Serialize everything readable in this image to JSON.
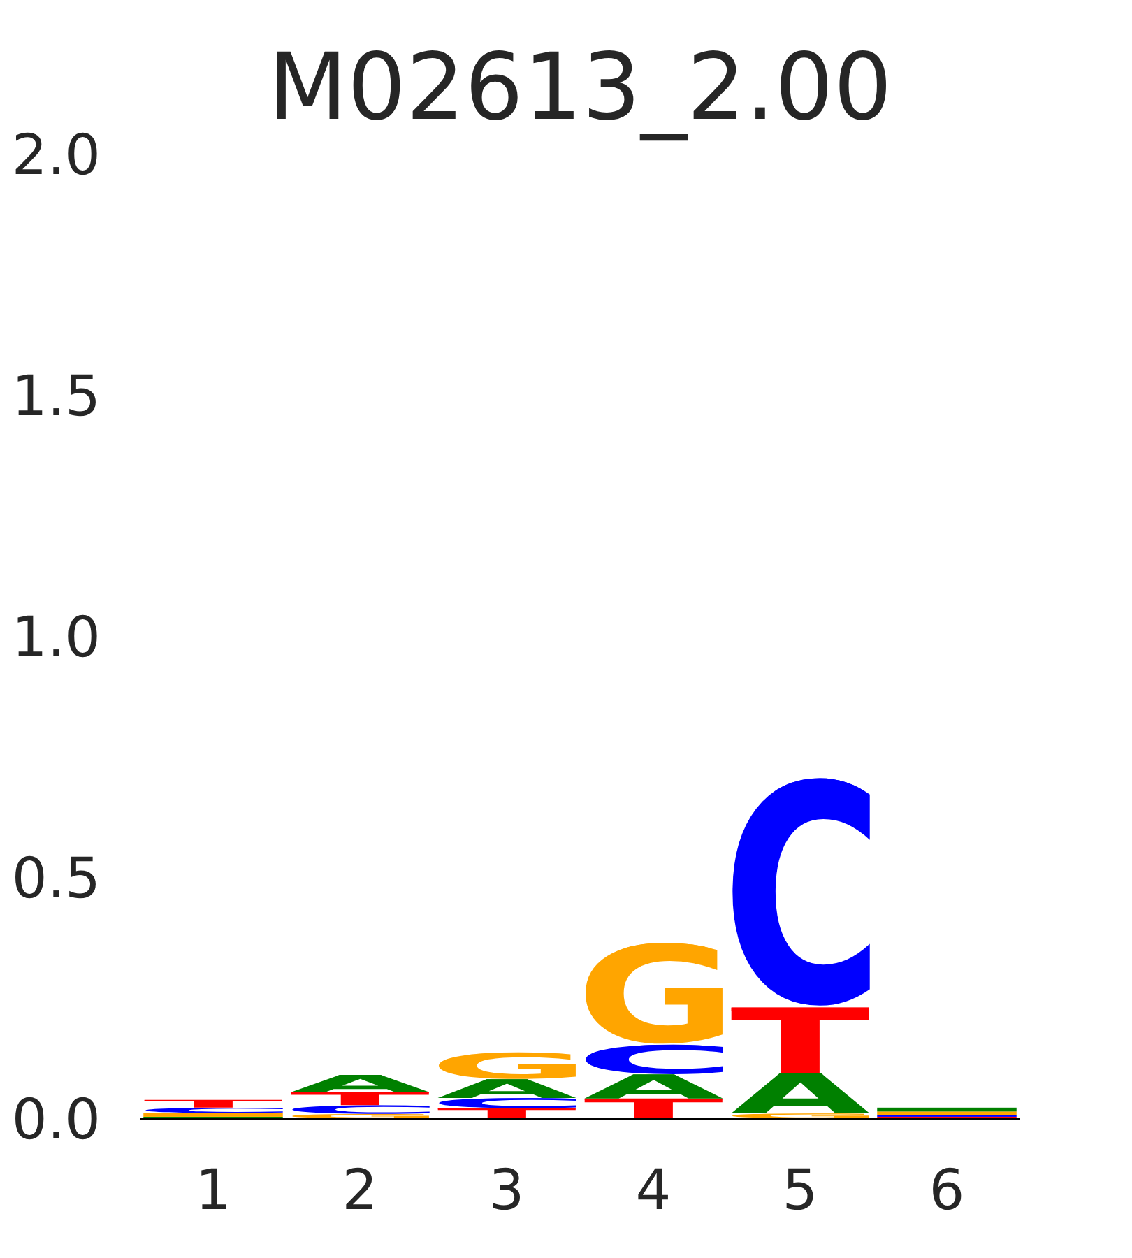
{
  "chart_data": {
    "type": "bar",
    "title": "M02613_2.00",
    "categories": [
      "1",
      "2",
      "3",
      "4",
      "5",
      "6"
    ],
    "stacked": true,
    "series": [
      {
        "values": [
          0.003,
          0.009,
          0.021,
          0.041,
          0.01,
          0.003
        ],
        "colors": [
          "#008000",
          "#ffa500",
          "#ff0000",
          "#ff0000",
          "#ffa500",
          "#ff0000"
        ],
        "value_labels": [
          null,
          "G",
          "T",
          "T",
          "G",
          null
        ]
      },
      {
        "values": [
          0.008,
          0.018,
          0.021,
          0.05,
          0.084,
          0.004
        ],
        "colors": [
          "#ffa500",
          "#0000ff",
          "#0000ff",
          "#008000",
          "#008000",
          "#0000ff"
        ],
        "value_labels": [
          null,
          "C",
          "C",
          "A",
          "A",
          null
        ]
      },
      {
        "values": [
          0.011,
          0.027,
          0.039,
          0.062,
          0.136,
          0.007
        ],
        "colors": [
          "#0000ff",
          "#ff0000",
          "#008000",
          "#0000ff",
          "#ff0000",
          "#ffa500"
        ],
        "value_labels": [
          "C",
          "T",
          "A",
          "C",
          "T",
          null
        ]
      },
      {
        "values": [
          0.016,
          0.036,
          0.056,
          0.213,
          0.48,
          0.008
        ],
        "colors": [
          "#ff0000",
          "#008000",
          "#ffa500",
          "#ffa500",
          "#0000ff",
          "#008000"
        ],
        "value_labels": [
          "T",
          "A",
          "G",
          "G",
          "C",
          null
        ]
      }
    ],
    "ylim": [
      0,
      2
    ],
    "yticks": [
      {
        "value": 0,
        "label": "0.0"
      },
      {
        "value": 0.5,
        "label": "0.5"
      },
      {
        "value": 1,
        "label": "1.0"
      },
      {
        "value": 1.5,
        "label": "1.5"
      },
      {
        "value": 2,
        "label": "2.0"
      }
    ]
  }
}
